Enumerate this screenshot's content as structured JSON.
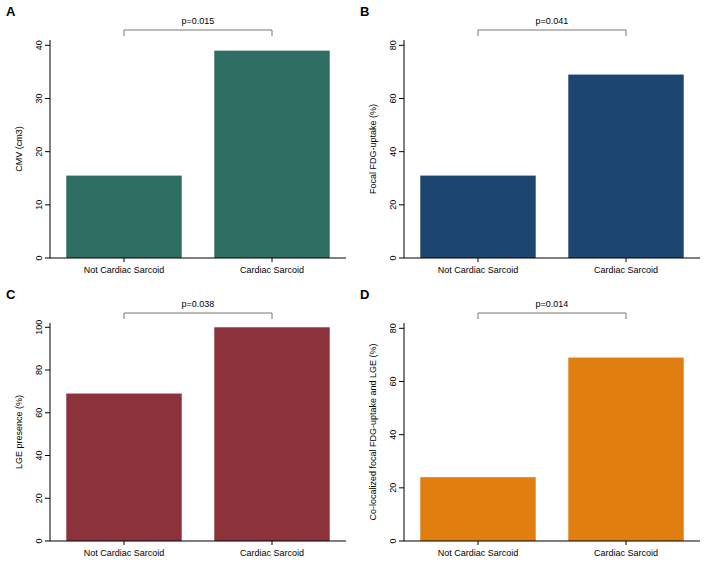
{
  "chart_data": [
    {
      "type": "bar",
      "title": "A",
      "y_label": "CMV (cm3)",
      "categories": [
        "Not Cardiac Sarcoid",
        "Cardiac Sarcoid"
      ],
      "values": [
        15.5,
        39
      ],
      "color": "#2f6e62",
      "ylim": [
        0,
        41
      ],
      "yticks": [
        0,
        10,
        20,
        30,
        40
      ],
      "grid": false,
      "annotations": [
        "p=0.015"
      ]
    },
    {
      "type": "bar",
      "title": "B",
      "y_label": "Focal FDG-uptake (%)",
      "categories": [
        "Not Cardiac Sarcoid",
        "Cardiac Sarcoid"
      ],
      "values": [
        31,
        69
      ],
      "color": "#1c4570",
      "ylim": [
        0,
        82
      ],
      "yticks": [
        0,
        20,
        40,
        60,
        80
      ],
      "grid": false,
      "annotations": [
        "p=0.041"
      ]
    },
    {
      "type": "bar",
      "title": "C",
      "y_label": "LGE presence (%)",
      "categories": [
        "Not Cardiac Sarcoid",
        "Cardiac Sarcoid"
      ],
      "values": [
        69,
        100
      ],
      "color": "#8c323b",
      "ylim": [
        0,
        102
      ],
      "yticks": [
        0,
        20,
        40,
        60,
        80,
        100
      ],
      "grid": false,
      "annotations": [
        "p=0.038"
      ]
    },
    {
      "type": "bar",
      "title": "D",
      "y_label": "Co-localized focal FDG-uptake and LGE (%)",
      "categories": [
        "Not Cardiac Sarcoid",
        "Cardiac Sarcoid"
      ],
      "values": [
        24,
        69
      ],
      "color": "#e07f10",
      "ylim": [
        0,
        82
      ],
      "yticks": [
        0,
        20,
        40,
        60,
        80
      ],
      "grid": false,
      "annotations": [
        "p=0.014"
      ]
    }
  ]
}
